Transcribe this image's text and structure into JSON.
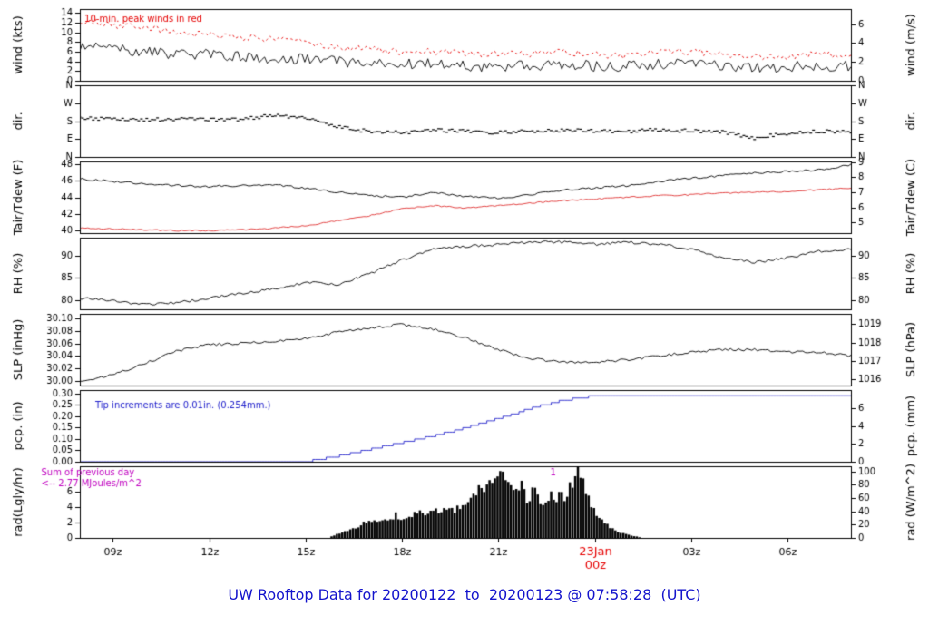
{
  "title": "UW Rooftop Data for 20200122  to  20200123 @ 07:58:28  (UTC)",
  "colors": {
    "line": "#000000",
    "peak_wind": "#e60000",
    "dewpoint": "#e03030",
    "precip": "#2222cc",
    "radiation_note": "#c000c0",
    "date_tick": "#e60000",
    "title": "#1414cc"
  },
  "chart_data": {
    "type": "line",
    "x_range": [
      7.97,
      31.97
    ],
    "xticks": [
      {
        "v": 9,
        "label": "09z"
      },
      {
        "v": 12,
        "label": "12z"
      },
      {
        "v": 15,
        "label": "15z"
      },
      {
        "v": 18,
        "label": "18z"
      },
      {
        "v": 21,
        "label": "21z"
      },
      {
        "v": 24,
        "label": "00z",
        "label_top": "23Jan",
        "color": "#e60000"
      },
      {
        "v": 27,
        "label": "03z"
      },
      {
        "v": 30,
        "label": "06z"
      }
    ],
    "panels": [
      {
        "ylabel_left": "wind (kts)",
        "ylabel_right": "wind (m/s)",
        "ylim": [
          0,
          14.8
        ],
        "yticks_left": [
          {
            "v": 0,
            "label": "0"
          },
          {
            "v": 2,
            "label": "2"
          },
          {
            "v": 4,
            "label": "4"
          },
          {
            "v": 6,
            "label": "6"
          },
          {
            "v": 8,
            "label": "8"
          },
          {
            "v": 10,
            "label": "10"
          },
          {
            "v": 12,
            "label": "12"
          },
          {
            "v": 14,
            "label": "14"
          }
        ],
        "yticks_right": [
          {
            "v": 0,
            "label": "0"
          },
          {
            "v": 3.889,
            "label": "2"
          },
          {
            "v": 7.778,
            "label": "4"
          },
          {
            "v": 11.667,
            "label": "6"
          }
        ],
        "annotations": [
          {
            "text": "10-min. peak winds in red",
            "color": "#e60000",
            "fx": 0.006,
            "fy": 0.14
          }
        ],
        "series": [
          {
            "name": "wind-peak",
            "color": "#e60000",
            "style": "dashed",
            "noise": 0.7,
            "min": 1,
            "t0": 8,
            "dt": 1,
            "v": [
              12.5,
              11.5,
              11,
              10,
              9.5,
              9,
              8.5,
              8,
              7,
              6.5,
              6,
              6,
              5.5,
              5.5,
              5.5,
              6,
              5.5,
              5,
              6,
              6,
              5.5,
              5,
              5,
              5.5,
              5
            ]
          },
          {
            "name": "wind-avg",
            "color": "#000000",
            "style": "line",
            "noise": 1.1,
            "min": 0.3,
            "t0": 8,
            "dt": 1,
            "v": [
              7,
              6.5,
              6,
              5.5,
              5.5,
              5,
              4.5,
              4.5,
              4,
              3.5,
              3.5,
              3.5,
              3,
              3,
              3,
              3.5,
              3,
              3,
              3.5,
              3.5,
              3,
              2.5,
              3,
              3,
              3
            ]
          }
        ]
      },
      {
        "ylabel_left": "dir.",
        "ylabel_right": "dir.",
        "ylim": [
          0,
          360
        ],
        "yticks_left": [
          {
            "v": 0,
            "label": "N"
          },
          {
            "v": 90,
            "label": "E"
          },
          {
            "v": 180,
            "label": "S"
          },
          {
            "v": 270,
            "label": "W"
          },
          {
            "v": 360,
            "label": "N"
          }
        ],
        "yticks_right": [
          {
            "v": 0,
            "label": "N"
          },
          {
            "v": 90,
            "label": "E"
          },
          {
            "v": 180,
            "label": "S"
          },
          {
            "v": 270,
            "label": "W"
          },
          {
            "v": 360,
            "label": "N"
          }
        ],
        "annotations": [],
        "series": [
          {
            "name": "wind-direction",
            "color": "#000000",
            "style": "scatter",
            "noise": 9,
            "t0": 8,
            "dt": 1,
            "v": [
              195,
              192,
              188,
              190,
              186,
              188,
              212,
              195,
              150,
              128,
              122,
              135,
              128,
              122,
              130,
              135,
              130,
              128,
              138,
              130,
              125,
              95,
              120,
              128,
              125
            ]
          }
        ]
      },
      {
        "ylabel_left": "Tair/Tdew (F)",
        "ylabel_right": "Tair/Tdew (C)",
        "ylim": [
          39.7,
          48.3
        ],
        "yticks_left": [
          {
            "v": 40,
            "label": "40"
          },
          {
            "v": 42,
            "label": "42"
          },
          {
            "v": 44,
            "label": "44"
          },
          {
            "v": 46,
            "label": "46"
          },
          {
            "v": 48,
            "label": "48"
          }
        ],
        "yticks_right": [
          {
            "v": 41,
            "label": "5"
          },
          {
            "v": 42.8,
            "label": "6"
          },
          {
            "v": 44.6,
            "label": "7"
          },
          {
            "v": 46.4,
            "label": "8"
          },
          {
            "v": 48.2,
            "label": "9"
          }
        ],
        "annotations": [],
        "series": [
          {
            "name": "air-temperature",
            "color": "#000000",
            "style": "line",
            "noise": 0.12,
            "t0": 8,
            "dt": 1,
            "v": [
              46.2,
              45.9,
              45.6,
              45.4,
              45.3,
              45.4,
              45.5,
              45.1,
              44.6,
              44.2,
              44.0,
              44.6,
              44.1,
              43.9,
              44.3,
              44.9,
              45.1,
              45.4,
              45.9,
              46.3,
              46.6,
              46.9,
              47.1,
              47.3,
              47.9
            ]
          },
          {
            "name": "dewpoint-temperature",
            "color": "#e03030",
            "style": "line",
            "noise": 0.08,
            "t0": 8,
            "dt": 1,
            "v": [
              40.3,
              40.2,
              40.1,
              40.0,
              40.0,
              40.1,
              40.3,
              40.6,
              41.2,
              41.8,
              42.6,
              43.0,
              42.7,
              43.0,
              43.3,
              43.6,
              43.8,
              44.0,
              44.2,
              44.3,
              44.5,
              44.6,
              44.7,
              44.9,
              45.1
            ]
          }
        ]
      },
      {
        "ylabel_left": "RH (%)",
        "ylabel_right": "RH (%)",
        "ylim": [
          78,
          94
        ],
        "yticks_left": [
          {
            "v": 80,
            "label": "80"
          },
          {
            "v": 85,
            "label": "85"
          },
          {
            "v": 90,
            "label": "90"
          }
        ],
        "yticks_right": [
          {
            "v": 80,
            "label": "80"
          },
          {
            "v": 85,
            "label": "85"
          },
          {
            "v": 90,
            "label": "90"
          }
        ],
        "annotations": [],
        "series": [
          {
            "name": "relative-humidity",
            "color": "#000000",
            "style": "line",
            "noise": 0.3,
            "t0": 8,
            "dt": 1,
            "v": [
              80.5,
              80,
              79,
              79.5,
              80.5,
              81.5,
              82.5,
              84,
              83.5,
              86,
              89,
              91.5,
              92,
              92.5,
              93,
              93,
              92.5,
              93,
              92.5,
              91.5,
              89.5,
              88.5,
              89.5,
              91,
              91.5
            ]
          }
        ]
      },
      {
        "ylabel_left": "SLP (inHg)",
        "ylabel_right": "SLP (hPa)",
        "ylim": [
          29.993,
          30.107
        ],
        "yticks_left": [
          {
            "v": 30.0,
            "label": "30.00"
          },
          {
            "v": 30.02,
            "label": "30.02"
          },
          {
            "v": 30.04,
            "label": "30.04"
          },
          {
            "v": 30.06,
            "label": "30.06"
          },
          {
            "v": 30.08,
            "label": "30.08"
          },
          {
            "v": 30.1,
            "label": "30.10"
          }
        ],
        "yticks_right": [
          {
            "v": 30.0024,
            "label": "1016"
          },
          {
            "v": 30.0319,
            "label": "1017"
          },
          {
            "v": 30.0614,
            "label": "1018"
          },
          {
            "v": 30.091,
            "label": "1019"
          }
        ],
        "annotations": [],
        "series": [
          {
            "name": "sea-level-pressure",
            "color": "#000000",
            "style": "line",
            "noise": 0.002,
            "t0": 8,
            "dt": 1,
            "v": [
              30.0,
              30.01,
              30.028,
              30.048,
              30.058,
              30.06,
              30.063,
              30.068,
              30.078,
              30.084,
              30.09,
              30.082,
              30.068,
              30.05,
              30.036,
              30.03,
              30.03,
              30.034,
              30.04,
              30.046,
              30.05,
              30.05,
              30.046,
              30.046,
              30.04
            ]
          }
        ]
      },
      {
        "ylabel_left": "pcp. (in)",
        "ylabel_right": "pcp. (mm)",
        "ylim": [
          0,
          0.315
        ],
        "yticks_left": [
          {
            "v": 0,
            "label": "0.00"
          },
          {
            "v": 0.05,
            "label": "0.05"
          },
          {
            "v": 0.1,
            "label": "0.10"
          },
          {
            "v": 0.15,
            "label": "0.15"
          },
          {
            "v": 0.2,
            "label": "0.20"
          },
          {
            "v": 0.25,
            "label": "0.25"
          },
          {
            "v": 0.3,
            "label": "0.30"
          }
        ],
        "yticks_right": [
          {
            "v": 0,
            "label": "0"
          },
          {
            "v": 0.0787,
            "label": "2"
          },
          {
            "v": 0.1575,
            "label": "4"
          },
          {
            "v": 0.2362,
            "label": "6"
          }
        ],
        "annotations": [
          {
            "text": "Tip increments are 0.01in. (0.254mm.)",
            "color": "#2222cc",
            "fx": 0.02,
            "fy": 0.22
          }
        ],
        "series": [
          {
            "name": "precipitation",
            "color": "#2222cc",
            "style": "step",
            "quantize": 0.01,
            "t0": 8,
            "dt": 1,
            "v": [
              0,
              0,
              0,
              0,
              0,
              0,
              0,
              0,
              0.025,
              0.055,
              0.085,
              0.115,
              0.15,
              0.19,
              0.235,
              0.27,
              0.29,
              0.29,
              0.29,
              0.29,
              0.29,
              0.29,
              0.29,
              0.29,
              0.29
            ]
          }
        ]
      },
      {
        "ylabel_left": "rad(Lgly/hr)",
        "ylabel_right": "rad (W/m^2)",
        "ylim": [
          0,
          108
        ],
        "yticks_left": [
          {
            "v": 0,
            "label": "0"
          },
          {
            "v": 23.26,
            "label": "2"
          },
          {
            "v": 46.51,
            "label": "4"
          },
          {
            "v": 69.77,
            "label": "6"
          }
        ],
        "yticks_right": [
          {
            "v": 0,
            "label": "0"
          },
          {
            "v": 20,
            "label": "20"
          },
          {
            "v": 40,
            "label": "40"
          },
          {
            "v": 60,
            "label": "60"
          },
          {
            "v": 80,
            "label": "80"
          },
          {
            "v": 100,
            "label": "100"
          }
        ],
        "annotations": [
          {
            "text": "Sum of previous day",
            "color": "#c000c0",
            "fx": -0.05,
            "fy": 0.1
          },
          {
            "text": "<-- 2.77 MJoules/m^2",
            "color": "#c000c0",
            "fx": -0.05,
            "fy": 0.25
          },
          {
            "text": "1",
            "color": "#c000c0",
            "fx": 0.61,
            "fy": 0.1
          }
        ],
        "series": [
          {
            "name": "solar-radiation",
            "color": "#000000",
            "style": "area",
            "noise": 0.15,
            "noise_mode": "mul",
            "min": 0,
            "t": [
              8,
              15.7,
              16,
              16.5,
              17,
              17.4,
              17.8,
              18,
              18.4,
              18.8,
              19.2,
              19.6,
              20,
              20.4,
              20.7,
              20.9,
              21.1,
              21.4,
              21.6,
              21.9,
              22.1,
              22.4,
              22.7,
              23,
              23.2,
              23.4,
              23.5,
              23.7,
              23.9,
              24.1,
              24.4,
              24.7,
              25,
              25.5,
              32
            ],
            "v": [
              0,
              0,
              6,
              14,
              28,
              24,
              34,
              30,
              38,
              35,
              42,
              40,
              55,
              70,
              88,
              80,
              90,
              75,
              85,
              60,
              70,
              55,
              65,
              60,
              75,
              95,
              102,
              70,
              45,
              30,
              18,
              10,
              5,
              0,
              0
            ]
          }
        ]
      }
    ]
  }
}
